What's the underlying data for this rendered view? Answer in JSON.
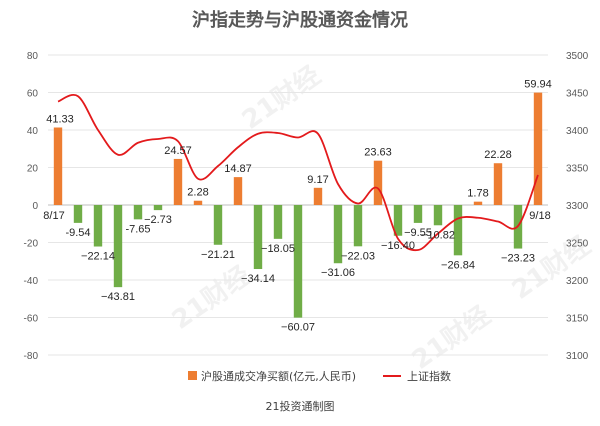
{
  "chart_data": {
    "type": "bar+line",
    "title": "沪指走势与沪股通资金情况",
    "footer": "21投资通制图",
    "watermark": "21财经",
    "left_axis": {
      "ylim": [
        -80,
        80
      ],
      "ticks": [
        80,
        60,
        40,
        20,
        0,
        -20,
        -40,
        -60,
        -80
      ]
    },
    "right_axis": {
      "ylim": [
        3100,
        3500
      ],
      "ticks": [
        3500,
        3450,
        3400,
        3350,
        3300,
        3250,
        3200,
        3150,
        3100
      ]
    },
    "start_date": "8/17",
    "end_date": "9/18",
    "bars": {
      "name": "沪股通成交净买额(亿元,人民币)",
      "values": [
        41.33,
        -9.54,
        -22.14,
        -43.81,
        -7.65,
        -2.73,
        24.57,
        2.28,
        -21.21,
        14.87,
        -34.14,
        -18.05,
        -60.07,
        9.17,
        -31.06,
        -22.03,
        23.63,
        -16.4,
        -9.55,
        -10.82,
        -26.84,
        1.78,
        22.28,
        -23.23,
        59.94
      ],
      "labels": [
        "41.33",
        "-9.54",
        "−22.14",
        "−43.81",
        "-7.65",
        "−2.73",
        "24.57",
        "2.28",
        "−21.21",
        "14.87",
        "−34.14",
        "−18.05",
        "−60.07",
        "9.17",
        "−31.06",
        "−22.03",
        "23.63",
        "−16.40",
        "−9.55",
        "−10.82",
        "−26.84",
        "1.78",
        "22.28",
        "−23.23",
        "59.94"
      ],
      "positive_color": "#ed7d31",
      "negative_color": "#70ad47"
    },
    "line": {
      "name": "上证指数",
      "values": [
        3438,
        3445,
        3400,
        3367,
        3383,
        3388,
        3385,
        3335,
        3352,
        3377,
        3395,
        3396,
        3390,
        3395,
        3328,
        3302,
        3322,
        3255,
        3240,
        3262,
        3282,
        3283,
        3278,
        3272,
        3340
      ],
      "color": "#e31a1c"
    },
    "legend": {
      "placement": "bottom"
    }
  }
}
